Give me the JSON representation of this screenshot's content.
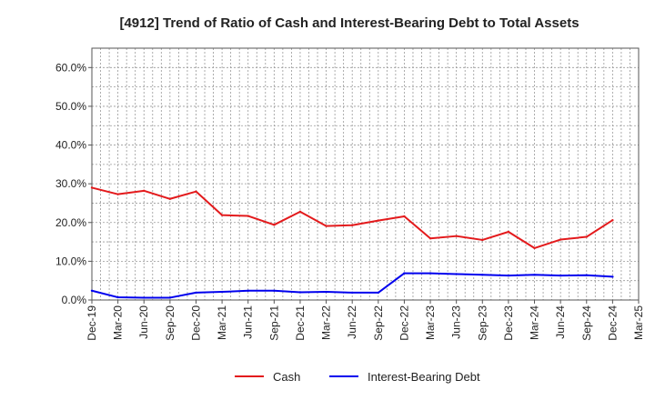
{
  "chart_data": {
    "type": "line",
    "title": "[4912]  Trend of Ratio of Cash and Interest-Bearing Debt to Total Assets",
    "xlabel": "",
    "ylabel": "",
    "ylim": [
      0,
      65
    ],
    "yticks": [
      0,
      10,
      20,
      30,
      40,
      50,
      60
    ],
    "ytick_labels": [
      "0.0%",
      "10.0%",
      "20.0%",
      "30.0%",
      "40.0%",
      "50.0%",
      "60.0%"
    ],
    "x_tick_labels": [
      "Dec-19",
      "Mar-20",
      "Jun-20",
      "Sep-20",
      "Dec-20",
      "Mar-21",
      "Jun-21",
      "Sep-21",
      "Dec-21",
      "Mar-22",
      "Jun-22",
      "Sep-22",
      "Dec-22",
      "Mar-23",
      "Jun-23",
      "Sep-23",
      "Dec-23",
      "Mar-24",
      "Jun-24",
      "Sep-24",
      "Dec-24",
      "Mar-25"
    ],
    "categories": [
      "Dec-19",
      "Mar-20",
      "Jun-20",
      "Sep-20",
      "Dec-20",
      "Mar-21",
      "Jun-21",
      "Sep-21",
      "Dec-21",
      "Mar-22",
      "Jun-22",
      "Sep-22",
      "Dec-22",
      "Mar-23",
      "Jun-23",
      "Sep-23",
      "Dec-23",
      "Mar-24",
      "Jun-24",
      "Sep-24",
      "Dec-24"
    ],
    "grid": true,
    "legend_position": "bottom-center",
    "series": [
      {
        "name": "Cash",
        "color": "#e31a1c",
        "values": [
          29.0,
          27.3,
          28.2,
          26.1,
          28.0,
          21.9,
          21.7,
          19.4,
          22.8,
          19.1,
          19.3,
          20.5,
          21.6,
          15.9,
          16.5,
          15.5,
          17.6,
          13.4,
          15.6,
          16.3,
          20.6
        ]
      },
      {
        "name": "Interest-Bearing Debt",
        "color": "#0000ee",
        "values": [
          2.4,
          0.7,
          0.6,
          0.6,
          1.9,
          2.1,
          2.4,
          2.4,
          2.0,
          2.1,
          1.9,
          1.9,
          6.9,
          6.9,
          6.7,
          6.5,
          6.3,
          6.5,
          6.3,
          6.4,
          6.0
        ]
      }
    ]
  }
}
